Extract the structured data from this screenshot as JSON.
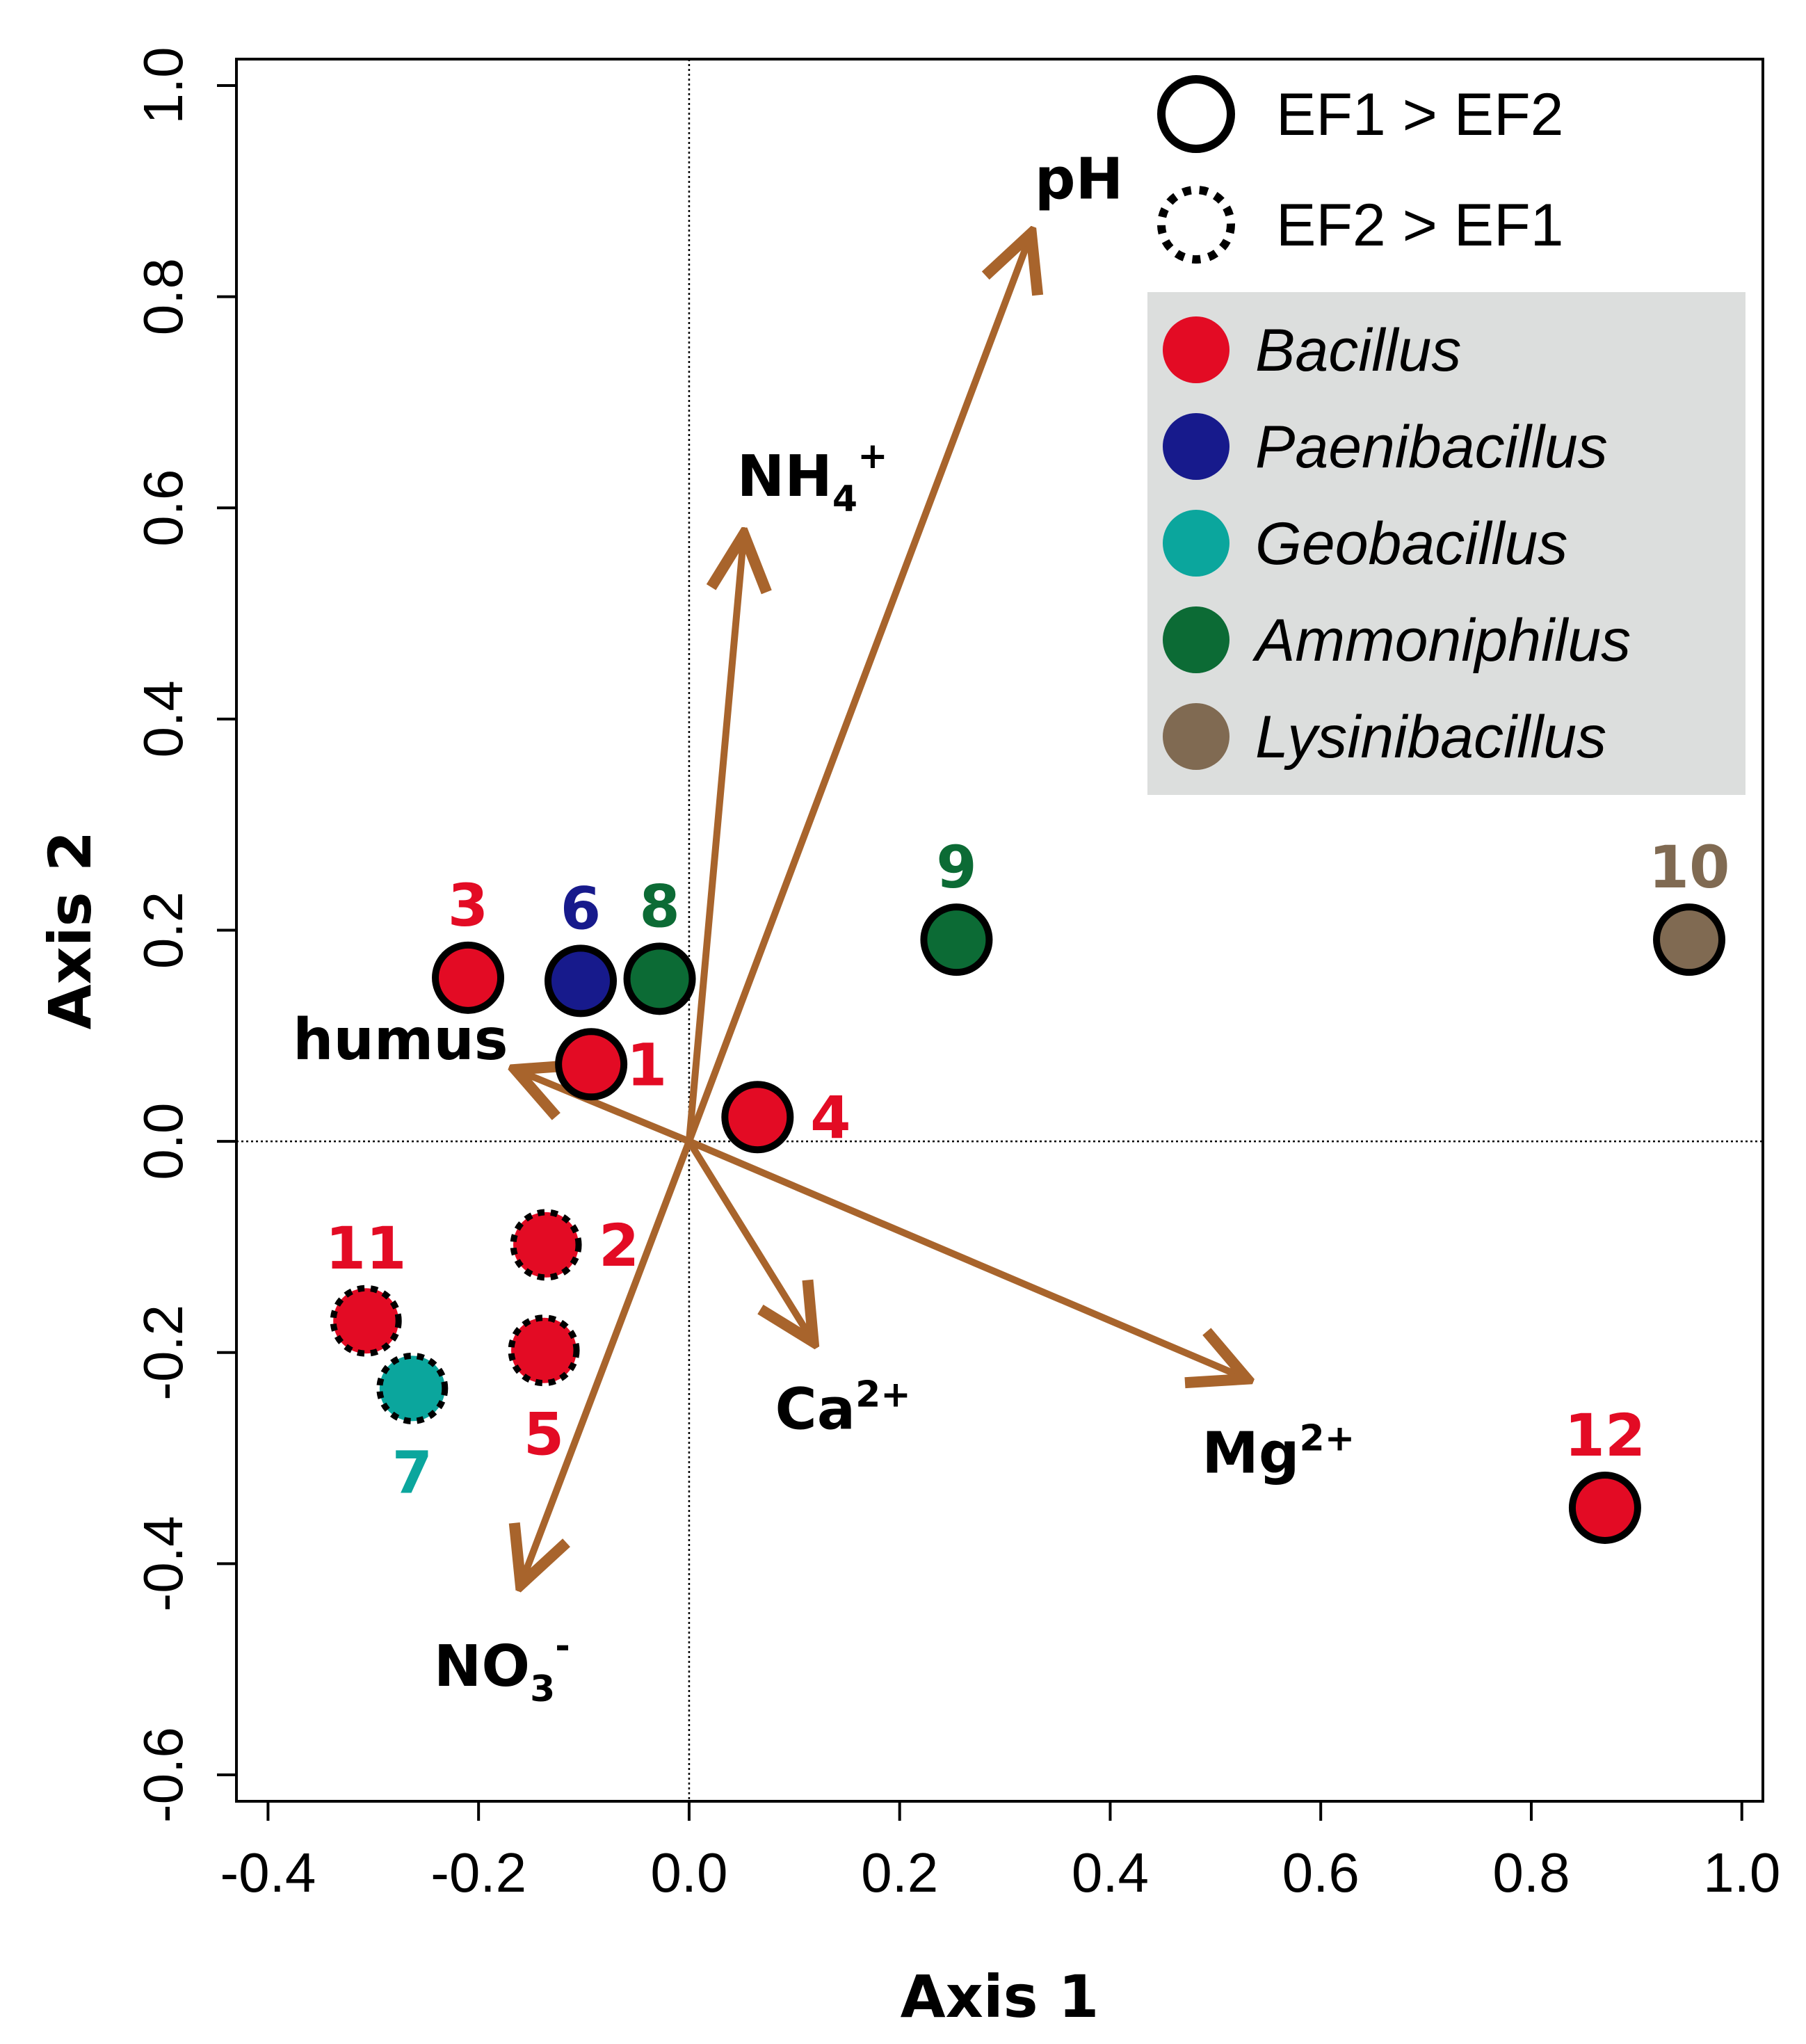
{
  "chart_data": {
    "type": "scatter",
    "subtype": "ordination biplot",
    "xlabel": "Axis 1",
    "ylabel": "Axis 2",
    "xlim": [
      -0.43,
      1.02
    ],
    "ylim": [
      -0.625,
      1.025
    ],
    "xticks": [
      -0.4,
      -0.2,
      0.0,
      0.2,
      0.4,
      0.6,
      0.8,
      1.0
    ],
    "xtick_labels": [
      "-0.4",
      "-0.2",
      "0.0",
      "0.2",
      "0.4",
      "0.6",
      "0.8",
      "1.0"
    ],
    "yticks": [
      -0.6,
      -0.4,
      -0.2,
      0.0,
      0.2,
      0.4,
      0.6,
      0.8,
      1.0
    ],
    "ytick_labels": [
      "-0.6",
      "-0.4",
      "-0.2",
      "0.0",
      "0.2",
      "0.4",
      "0.6",
      "0.8",
      "1.0"
    ],
    "reference_lines": {
      "x": 0.0,
      "y": 0.0,
      "style": "dotted"
    },
    "points": [
      {
        "label": "1",
        "x": -0.093,
        "y": 0.073,
        "genus": "Bacillus",
        "group": "EF1 > EF2"
      },
      {
        "label": "2",
        "x": -0.136,
        "y": -0.098,
        "genus": "Bacillus",
        "group": "EF2 > EF1"
      },
      {
        "label": "3",
        "x": -0.21,
        "y": 0.155,
        "genus": "Bacillus",
        "group": "EF1 > EF2"
      },
      {
        "label": "4",
        "x": 0.065,
        "y": 0.023,
        "genus": "Bacillus",
        "group": "EF1 > EF2"
      },
      {
        "label": "5",
        "x": -0.138,
        "y": -0.198,
        "genus": "Bacillus",
        "group": "EF2 > EF1"
      },
      {
        "label": "6",
        "x": -0.103,
        "y": 0.152,
        "genus": "Paenibacillus",
        "group": "EF1 > EF2"
      },
      {
        "label": "7",
        "x": -0.263,
        "y": -0.234,
        "genus": "Geobacillus",
        "group": "EF2 > EF1"
      },
      {
        "label": "8",
        "x": -0.028,
        "y": 0.154,
        "genus": "Ammoniphilus",
        "group": "EF1 > EF2"
      },
      {
        "label": "9",
        "x": 0.254,
        "y": 0.191,
        "genus": "Ammoniphilus",
        "group": "EF1 > EF2"
      },
      {
        "label": "10",
        "x": 0.95,
        "y": 0.191,
        "genus": "Lysinibacillus",
        "group": "EF1 > EF2"
      },
      {
        "label": "11",
        "x": -0.307,
        "y": -0.17,
        "genus": "Bacillus",
        "group": "EF2 > EF1"
      },
      {
        "label": "12",
        "x": 0.87,
        "y": -0.347,
        "genus": "Bacillus",
        "group": "EF1 > EF2"
      }
    ],
    "vectors": [
      {
        "name": "pH",
        "label": "pH",
        "sub": "",
        "sup": "",
        "x": 0.325,
        "y": 0.86
      },
      {
        "name": "NH4+",
        "label": "NH",
        "sub": "4",
        "sup": "+",
        "x": 0.052,
        "y": 0.575
      },
      {
        "name": "humus",
        "label": "humus",
        "sub": "",
        "sup": "",
        "x": -0.165,
        "y": 0.068
      },
      {
        "name": "Ca2+",
        "label": "Ca",
        "sub": "",
        "sup": "2+",
        "x": 0.118,
        "y": -0.19
      },
      {
        "name": "Mg2+",
        "label": "Mg",
        "sub": "",
        "sup": "2+",
        "x": 0.53,
        "y": -0.225
      },
      {
        "name": "NO3-",
        "label": "NO",
        "sub": "3",
        "sup": "-",
        "x": -0.16,
        "y": -0.42
      }
    ],
    "legend": {
      "placement": "top-right",
      "line_styles": [
        {
          "label": "EF1 > EF2",
          "style": "solid"
        },
        {
          "label": "EF2 > EF1",
          "style": "dotted"
        }
      ],
      "genera": [
        {
          "name": "Bacillus",
          "color": "#e30b24"
        },
        {
          "name": "Paenibacillus",
          "color": "#171a8c"
        },
        {
          "name": "Geobacillus",
          "color": "#0ba69d"
        },
        {
          "name": "Ammoniphilus",
          "color": "#0c6b35"
        },
        {
          "name": "Lysinibacillus",
          "color": "#806a52"
        }
      ]
    },
    "colors": {
      "vector": "#a8642c",
      "legend_background": "#dcdedd",
      "point_outline": "#000000"
    }
  }
}
